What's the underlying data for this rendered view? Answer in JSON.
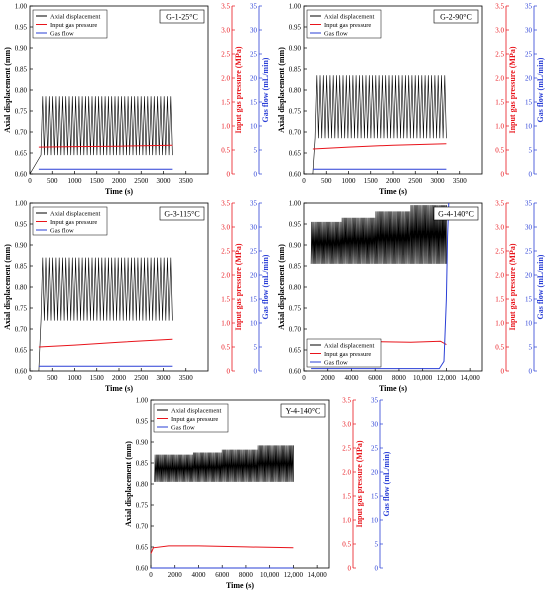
{
  "colors": {
    "axial": "#000000",
    "pressure": "#e8141b",
    "flow": "#2a3fd6"
  },
  "chart_data": [
    {
      "type": "line",
      "label": "G-1-25°C",
      "title": "",
      "xlabel": "Time (s)",
      "ylabel_left": "Axial displacement (mm)",
      "ylabel_right1": "Input gas pressure (MPa)",
      "ylabel_right2": "Gas flow (mL/min)",
      "xlim": [
        0,
        4000
      ],
      "xticks": [
        0,
        500,
        1000,
        1500,
        2000,
        2500,
        3000,
        3500
      ],
      "xtick_labels": [
        "0",
        "500",
        "1000",
        "1500",
        "2000",
        "2500",
        "3000",
        "3500"
      ],
      "ylim_left": [
        0.6,
        1.0
      ],
      "yticks_left": [
        "0.60",
        "0.65",
        "0.70",
        "0.75",
        "0.80",
        "0.85",
        "0.90",
        "0.95",
        "1.00"
      ],
      "ylim_right1": [
        0,
        3.5
      ],
      "yticks_right1": [
        "0",
        "0.5",
        "1.0",
        "1.5",
        "2.0",
        "2.5",
        "3.0",
        "3.5"
      ],
      "ylim_right2": [
        0,
        35
      ],
      "yticks_right2": [
        "0",
        "5",
        "10",
        "15",
        "20",
        "25",
        "30",
        "35"
      ],
      "legend": [
        "Axial displacement",
        "Input gas pressure",
        "Gas flow"
      ],
      "legend_position": "top-left",
      "series": [
        {
          "name": "Axial displacement",
          "axis": "left",
          "oscillation": {
            "t_start": 250,
            "t_end": 3200,
            "min": 0.645,
            "max": 0.785,
            "cycles": 40,
            "plateau_min": 0.645,
            "plateau_max": 0.785
          },
          "x": [
            0,
            250
          ],
          "y": [
            0.6,
            0.645
          ]
        },
        {
          "name": "Input gas pressure",
          "axis": "right1",
          "x": [
            200,
            1000,
            2000,
            3200
          ],
          "y": [
            0.56,
            0.57,
            0.58,
            0.6
          ]
        },
        {
          "name": "Gas flow",
          "axis": "right2",
          "x": [
            200,
            3200
          ],
          "y": [
            1.0,
            1.0
          ]
        }
      ]
    },
    {
      "type": "line",
      "label": "G-2-90°C",
      "title": "",
      "xlabel": "Time (s)",
      "ylabel_left": "Axial displacement (mm)",
      "ylabel_right1": "Input gas pressure (MPa)",
      "ylabel_right2": "Gas flow (mL/min)",
      "xlim": [
        0,
        4000
      ],
      "xticks": [
        0,
        500,
        1000,
        1500,
        2000,
        2500,
        3000,
        3500
      ],
      "xtick_labels": [
        "0",
        "500",
        "1000",
        "1500",
        "2000",
        "2500",
        "3000",
        "3500"
      ],
      "ylim_left": [
        0.6,
        1.0
      ],
      "yticks_left": [
        "0.60",
        "0.65",
        "0.70",
        "0.75",
        "0.80",
        "0.85",
        "0.90",
        "0.95",
        "1.00"
      ],
      "ylim_right1": [
        0,
        3.5
      ],
      "yticks_right1": [
        "0",
        "0.5",
        "1.0",
        "1.5",
        "2.0",
        "2.5",
        "3.0",
        "3.5"
      ],
      "ylim_right2": [
        0,
        35
      ],
      "yticks_right2": [
        "0",
        "5",
        "10",
        "15",
        "20",
        "25",
        "30",
        "35"
      ],
      "legend": [
        "Axial displacement",
        "Input gas pressure",
        "Gas flow"
      ],
      "legend_position": "top-left",
      "series": [
        {
          "name": "Axial displacement",
          "axis": "left",
          "oscillation": {
            "t_start": 250,
            "t_end": 3200,
            "min": 0.685,
            "max": 0.835,
            "cycles": 40,
            "plateau_min": 0.685,
            "plateau_max": 0.835
          },
          "x": [
            200,
            250
          ],
          "y": [
            0.6,
            0.685
          ]
        },
        {
          "name": "Input gas pressure",
          "axis": "right1",
          "x": [
            200,
            1000,
            2000,
            3200
          ],
          "y": [
            0.52,
            0.56,
            0.6,
            0.63
          ]
        },
        {
          "name": "Gas flow",
          "axis": "right2",
          "x": [
            200,
            3200
          ],
          "y": [
            1.0,
            1.0
          ]
        }
      ]
    },
    {
      "type": "line",
      "label": "G-3-115°C",
      "title": "",
      "xlabel": "Time (s)",
      "ylabel_left": "Axial displacement (mm)",
      "ylabel_right1": "Input gas pressure (MPa)",
      "ylabel_right2": "Gas flow (mL/min)",
      "xlim": [
        0,
        4000
      ],
      "xticks": [
        0,
        500,
        1000,
        1500,
        2000,
        2500,
        3000,
        3500
      ],
      "xtick_labels": [
        "0",
        "500",
        "1000",
        "1500",
        "2000",
        "2500",
        "3000",
        "3500"
      ],
      "ylim_left": [
        0.6,
        1.0
      ],
      "yticks_left": [
        "0.60",
        "0.65",
        "0.70",
        "0.75",
        "0.80",
        "0.85",
        "0.90",
        "0.95",
        "1.00"
      ],
      "ylim_right1": [
        0,
        3.5
      ],
      "yticks_right1": [
        "0",
        "0.5",
        "1.0",
        "1.5",
        "2.0",
        "2.5",
        "3.0",
        "3.5"
      ],
      "ylim_right2": [
        0,
        35
      ],
      "yticks_right2": [
        "0",
        "5",
        "10",
        "15",
        "20",
        "25",
        "30",
        "35"
      ],
      "legend": [
        "Axial displacement",
        "Input gas pressure",
        "Gas flow"
      ],
      "legend_position": "top-left",
      "series": [
        {
          "name": "Axial displacement",
          "axis": "left",
          "oscillation": {
            "t_start": 250,
            "t_end": 3200,
            "min": 0.72,
            "max": 0.87,
            "cycles": 40,
            "plateau_min": 0.72,
            "plateau_max": 0.87
          },
          "x": [
            200,
            250
          ],
          "y": [
            0.6,
            0.72
          ]
        },
        {
          "name": "Input gas pressure",
          "axis": "right1",
          "x": [
            200,
            1000,
            2000,
            3200
          ],
          "y": [
            0.5,
            0.54,
            0.6,
            0.66
          ]
        },
        {
          "name": "Gas flow",
          "axis": "right2",
          "x": [
            200,
            3200
          ],
          "y": [
            1.0,
            1.0
          ]
        }
      ]
    },
    {
      "type": "line",
      "label": "G-4-140°C",
      "title": "",
      "xlabel": "Time (s)",
      "ylabel_left": "Axial displacement (mm)",
      "ylabel_right1": "Input gas pressure (MPa)",
      "ylabel_right2": "Gas flow (mL/min)",
      "xlim": [
        0,
        15000
      ],
      "xticks": [
        0,
        2000,
        4000,
        6000,
        8000,
        10000,
        12000,
        14000
      ],
      "xtick_labels": [
        "0",
        "2000",
        "4000",
        "6000",
        "8000",
        "10,000",
        "12,000",
        "14,000"
      ],
      "ylim_left": [
        0.6,
        1.0
      ],
      "yticks_left": [
        "0.60",
        "0.65",
        "0.70",
        "0.75",
        "0.80",
        "0.85",
        "0.90",
        "0.95",
        "1.00"
      ],
      "ylim_right1": [
        0,
        3.5
      ],
      "yticks_right1": [
        "0",
        "0.5",
        "1.0",
        "1.5",
        "2.0",
        "2.5",
        "3.0",
        "3.5"
      ],
      "ylim_right2": [
        0,
        35
      ],
      "yticks_right2": [
        "0",
        "5",
        "10",
        "15",
        "20",
        "25",
        "30",
        "35"
      ],
      "legend": [
        "Axial displacement",
        "Input gas pressure",
        "Gas flow"
      ],
      "legend_position": "bottom-left",
      "series": [
        {
          "name": "Axial displacement",
          "axis": "left",
          "oscillation": {
            "t_start": 600,
            "t_end": 12000,
            "min": 0.855,
            "max": 0.99,
            "cycles": 120,
            "steps": [
              [
                600,
                0.955
              ],
              [
                3200,
                0.965
              ],
              [
                6000,
                0.98
              ],
              [
                9000,
                0.995
              ]
            ]
          },
          "x": [],
          "y": []
        },
        {
          "name": "Input gas pressure",
          "axis": "right1",
          "x": [
            600,
            3000,
            6000,
            9000,
            11500,
            12000
          ],
          "y": [
            0.6,
            0.6,
            0.61,
            0.6,
            0.62,
            0.55
          ]
        },
        {
          "name": "Gas flow",
          "axis": "right2",
          "x": [
            600,
            11400,
            11800,
            12000,
            12100,
            12200
          ],
          "y": [
            0.5,
            0.5,
            2.0,
            15.0,
            28.0,
            35.0
          ]
        }
      ]
    },
    {
      "type": "line",
      "label": "Y-4-140°C",
      "title": "",
      "xlabel": "Time (s)",
      "ylabel_left": "Axial displacement (mm)",
      "ylabel_right1": "Input gas pressure (MPa)",
      "ylabel_right2": "Gas flow (mL/min)",
      "xlim": [
        0,
        15000
      ],
      "xticks": [
        0,
        2000,
        4000,
        6000,
        8000,
        10000,
        12000,
        14000
      ],
      "xtick_labels": [
        "0",
        "2000",
        "4000",
        "6000",
        "8000",
        "10,000",
        "12,000",
        "14,000"
      ],
      "ylim_left": [
        0.6,
        1.0
      ],
      "yticks_left": [
        "0.60",
        "0.65",
        "0.70",
        "0.75",
        "0.80",
        "0.85",
        "0.90",
        "0.95",
        "1.00"
      ],
      "ylim_right1": [
        0,
        3.5
      ],
      "yticks_right1": [
        "0",
        "0.5",
        "1.0",
        "1.5",
        "2.0",
        "2.5",
        "3.0",
        "3.5"
      ],
      "ylim_right2": [
        0,
        35
      ],
      "yticks_right2": [
        "0",
        "5",
        "10",
        "15",
        "20",
        "25",
        "30",
        "35"
      ],
      "legend": [
        "Axial displacement",
        "Input gas pressure",
        "Gas flow"
      ],
      "legend_position": "top-left",
      "series": [
        {
          "name": "Axial displacement",
          "axis": "left",
          "oscillation": {
            "t_start": 300,
            "t_end": 12000,
            "min": 0.805,
            "max": 0.89,
            "cycles": 120,
            "steps": [
              [
                300,
                0.87
              ],
              [
                3500,
                0.875
              ],
              [
                6000,
                0.882
              ],
              [
                9000,
                0.892
              ]
            ]
          },
          "x": [],
          "y": []
        },
        {
          "name": "Input gas pressure",
          "axis": "right1",
          "x": [
            0,
            200,
            1500,
            4000,
            8000,
            12000
          ],
          "y": [
            0.3,
            0.42,
            0.46,
            0.46,
            0.44,
            0.42
          ]
        },
        {
          "name": "Gas flow",
          "axis": "right2",
          "x": [
            0,
            12000
          ],
          "y": [
            0.0,
            0.0
          ]
        }
      ]
    }
  ]
}
